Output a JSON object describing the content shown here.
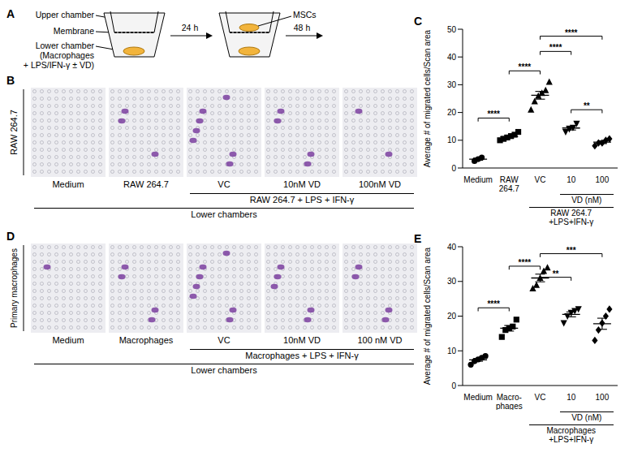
{
  "panel_A": {
    "letter": "A",
    "upper_chamber": "Upper chamber",
    "membrane": "Membrane",
    "lower_chamber": [
      "Lower chamber",
      "(Macrophages",
      "+ LPS/IFN-γ ± VD)"
    ],
    "cells": "MSCs",
    "time_1": "24 h",
    "time_2": "48 h"
  },
  "panel_B": {
    "letter": "B",
    "side_label": "RAW 264.7",
    "image_labels": [
      "Medium",
      "RAW 264.7",
      "VC",
      "10nM VD",
      "100nM VD"
    ],
    "group": {
      "text": "RAW 264.7 + LPS + IFN-γ",
      "from": 2,
      "to": 4
    },
    "bottom_label": "Lower chambers"
  },
  "panel_D": {
    "letter": "D",
    "side_label": "Primary macrophages",
    "image_labels": [
      "Medium",
      "Macrophages",
      "VC",
      "10nM VD",
      "100 nM VD"
    ],
    "group": {
      "text": "Macrophages + LPS + IFN-γ",
      "from": 2,
      "to": 4
    },
    "bottom_label": "Lower chambers"
  },
  "chart_data": [
    {
      "letter": "C",
      "type": "scatter",
      "y_label": "Average # of migrated cells/Scan area",
      "ylim": [
        0,
        50
      ],
      "yticks": [
        0,
        10,
        20,
        30,
        40,
        50
      ],
      "color": "#000000",
      "series": [
        {
          "name": "Medium",
          "marker": "circle",
          "values": [
            2.5,
            3.2,
            3.8
          ],
          "mean": 3.2,
          "error": 0.4
        },
        {
          "name": "RAW\n264.7",
          "marker": "square",
          "values": [
            10,
            10.5,
            11,
            11.5,
            12,
            13
          ],
          "mean": 11.3,
          "error": 0.5
        },
        {
          "name": "VC",
          "marker": "triangle",
          "values": [
            21,
            24,
            26,
            27,
            28,
            31
          ],
          "mean": 26.2,
          "error": 1.4
        },
        {
          "name": "10",
          "marker": "triangle-down",
          "values": [
            13,
            14,
            14.5,
            16
          ],
          "mean": 14.4,
          "error": 0.7
        },
        {
          "name": "100",
          "marker": "diamond",
          "values": [
            8,
            9,
            9,
            10,
            10.5
          ],
          "mean": 9.3,
          "error": 0.5
        }
      ],
      "group_labels": [
        {
          "text": "VD (nM)",
          "from": 3,
          "to": 4
        },
        {
          "text": "RAW 264.7\n+LPS+IFN-γ",
          "from": 2,
          "to": 4
        }
      ],
      "comparisons": [
        {
          "from": 0,
          "to": 1,
          "label": "****"
        },
        {
          "from": 1,
          "to": 2,
          "label": "****"
        },
        {
          "from": 2,
          "to": 3,
          "label": "****"
        },
        {
          "from": 2,
          "to": 4,
          "label": "****"
        },
        {
          "from": 3,
          "to": 4,
          "label": "**"
        }
      ]
    },
    {
      "letter": "E",
      "type": "scatter",
      "y_label": "Average # of migrated cells/Scan area",
      "ylim": [
        0,
        40
      ],
      "yticks": [
        0,
        10,
        20,
        30,
        40
      ],
      "color": "#000000",
      "series": [
        {
          "name": "Medium",
          "marker": "circle",
          "values": [
            6,
            7,
            7.5,
            8,
            8.5
          ],
          "mean": 7.4,
          "error": 0.4
        },
        {
          "name": "Macro-\nphages",
          "marker": "square",
          "values": [
            14,
            16,
            16.5,
            17,
            19
          ],
          "mean": 16.5,
          "error": 0.8
        },
        {
          "name": "VC",
          "marker": "triangle",
          "values": [
            28,
            29,
            31,
            33,
            34
          ],
          "mean": 31,
          "error": 1.1
        },
        {
          "name": "10",
          "marker": "triangle-down",
          "values": [
            18,
            20,
            21,
            21.5,
            22
          ],
          "mean": 20.5,
          "error": 0.7
        },
        {
          "name": "100",
          "marker": "diamond",
          "values": [
            13,
            16,
            18,
            20,
            22
          ],
          "mean": 17.8,
          "error": 1.6
        }
      ],
      "group_labels": [
        {
          "text": "VD (nM)",
          "from": 3,
          "to": 4
        },
        {
          "text": "Macrophages\n+LPS+IFN-γ",
          "from": 2,
          "to": 4
        }
      ],
      "comparisons": [
        {
          "from": 0,
          "to": 1,
          "label": "****"
        },
        {
          "from": 1,
          "to": 2,
          "label": "****"
        },
        {
          "from": 2,
          "to": 3,
          "label": "**"
        },
        {
          "from": 2,
          "to": 4,
          "label": "***"
        }
      ]
    }
  ]
}
